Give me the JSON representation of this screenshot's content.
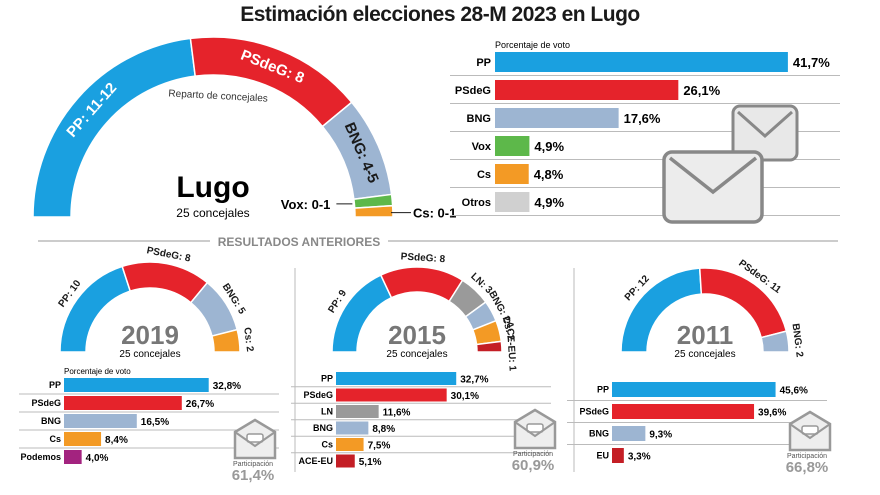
{
  "title": "Estimación elecciones 28-M 2023 en Lugo",
  "section_label": "RESULTADOS ANTERIORES",
  "chart_data": [
    {
      "id": "estimate-2023-seats",
      "type": "pie",
      "subtype": "semicircle",
      "title": "Lugo",
      "subtitle": "25 concejales",
      "inner_label": "Reparto de concejales",
      "total_seats": 25,
      "slices": [
        {
          "party": "PP",
          "label": "PP: 11-12",
          "value": 11.5,
          "color": "#1aa0e0"
        },
        {
          "party": "PSdeG",
          "label": "PSdeG: 8",
          "value": 8,
          "color": "#e5232b"
        },
        {
          "party": "BNG",
          "label": "BNG: 4-5",
          "value": 4.5,
          "color": "#9db5d2"
        },
        {
          "party": "Vox",
          "label": "Vox: 0-1",
          "value": 0.5,
          "color": "#5db84a"
        },
        {
          "party": "Cs",
          "label": "Cs: 0-1",
          "value": 0.5,
          "color": "#f39a25"
        }
      ]
    },
    {
      "id": "estimate-2023-votes",
      "type": "bar",
      "orientation": "horizontal",
      "title": "Porcentaje de voto",
      "categories": [
        "PP",
        "PSdeG",
        "BNG",
        "Vox",
        "Cs",
        "Otros"
      ],
      "values": [
        41.7,
        26.1,
        17.6,
        4.9,
        4.8,
        4.9
      ],
      "value_labels": [
        "41,7%",
        "26,1%",
        "17,6%",
        "4,9%",
        "4,8%",
        "4,9%"
      ],
      "colors": [
        "#1aa0e0",
        "#e5232b",
        "#9db5d2",
        "#5db84a",
        "#f39a25",
        "#d0d0d0"
      ],
      "xlim": [
        0,
        42
      ]
    },
    {
      "id": "results-2019",
      "year": "2019",
      "subtitle": "25 concejales",
      "type": "pie",
      "subtype": "semicircle",
      "slices": [
        {
          "party": "PP",
          "label": "PP: 10",
          "value": 10,
          "color": "#1aa0e0"
        },
        {
          "party": "PSdeG",
          "label": "PSdeG: 8",
          "value": 8,
          "color": "#e5232b"
        },
        {
          "party": "BNG",
          "label": "BNG: 5",
          "value": 5,
          "color": "#9db5d2"
        },
        {
          "party": "Cs",
          "label": "Cs: 2",
          "value": 2,
          "color": "#f39a25"
        }
      ],
      "votes": {
        "title": "Porcentaje de voto",
        "categories": [
          "PP",
          "PSdeG",
          "BNG",
          "Cs",
          "Podemos"
        ],
        "values": [
          32.8,
          26.7,
          16.5,
          8.4,
          4.0
        ],
        "value_labels": [
          "32,8%",
          "26,7%",
          "16,5%",
          "8,4%",
          "4,0%"
        ],
        "colors": [
          "#1aa0e0",
          "#e5232b",
          "#9db5d2",
          "#f39a25",
          "#a3237f"
        ]
      },
      "participation_label": "Participación",
      "participation": "61,4%"
    },
    {
      "id": "results-2015",
      "year": "2015",
      "subtitle": "25 concejales",
      "type": "pie",
      "subtype": "semicircle",
      "slices": [
        {
          "party": "PP",
          "label": "PP: 9",
          "value": 9,
          "color": "#1aa0e0"
        },
        {
          "party": "PSdeG",
          "label": "PSdeG: 8",
          "value": 8,
          "color": "#e5232b"
        },
        {
          "party": "LN",
          "label": "LN: 3",
          "value": 3,
          "color": "#9a9a9a"
        },
        {
          "party": "BNG",
          "label": "BNG: 2",
          "value": 2,
          "color": "#9db5d2"
        },
        {
          "party": "Cs",
          "label": "Cs: 2",
          "value": 2,
          "color": "#f39a25"
        },
        {
          "party": "ACE-EU",
          "label": "ACE-EU: 1",
          "value": 1,
          "color": "#c41e25"
        }
      ],
      "votes": {
        "categories": [
          "PP",
          "PSdeG",
          "LN",
          "BNG",
          "Cs",
          "ACE-EU"
        ],
        "values": [
          32.7,
          30.1,
          11.6,
          8.8,
          7.5,
          5.1
        ],
        "value_labels": [
          "32,7%",
          "30,1%",
          "11,6%",
          "8,8%",
          "7,5%",
          "5,1%"
        ],
        "colors": [
          "#1aa0e0",
          "#e5232b",
          "#9a9a9a",
          "#9db5d2",
          "#f39a25",
          "#c41e25"
        ]
      },
      "participation_label": "Participación",
      "participation": "60,9%"
    },
    {
      "id": "results-2011",
      "year": "2011",
      "subtitle": "25 concejales",
      "type": "pie",
      "subtype": "semicircle",
      "slices": [
        {
          "party": "PP",
          "label": "PP: 12",
          "value": 12,
          "color": "#1aa0e0"
        },
        {
          "party": "PSdeG",
          "label": "PSdeG: 11",
          "value": 11,
          "color": "#e5232b"
        },
        {
          "party": "BNG",
          "label": "BNG: 2",
          "value": 2,
          "color": "#9db5d2"
        }
      ],
      "votes": {
        "categories": [
          "PP",
          "PSdeG",
          "BNG",
          "EU"
        ],
        "values": [
          45.6,
          39.6,
          9.3,
          3.3
        ],
        "value_labels": [
          "45,6%",
          "39,6%",
          "9,3%",
          "3,3%"
        ],
        "colors": [
          "#1aa0e0",
          "#e5232b",
          "#9db5d2",
          "#c41e25"
        ]
      },
      "participation_label": "Participación",
      "participation": "66,8%"
    }
  ]
}
